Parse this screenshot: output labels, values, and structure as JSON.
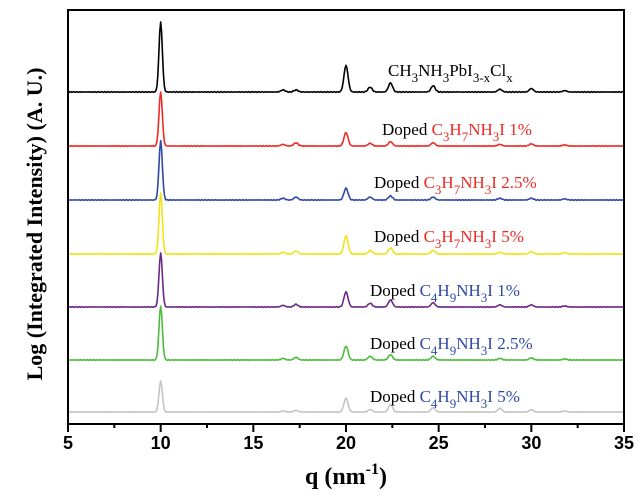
{
  "chart_data": {
    "type": "line",
    "title": "",
    "xlabel": "q (nm",
    "xlabel_sup": "-1",
    "xlabel_close": ")",
    "ylabel": "Log (Integrated Intensity) (A. U.)",
    "xlim": [
      5,
      35
    ],
    "x_ticks": [
      "5",
      "10",
      "15",
      "20",
      "25",
      "30",
      "35"
    ],
    "y_ticks": [],
    "peaks_q": [
      10.0,
      14.2,
      16.6,
      17.3,
      20.0,
      21.3,
      22.4,
      24.7,
      28.3,
      30.0,
      31.8
    ],
    "series": [
      {
        "name": "CH3NH3PbI3-xClx",
        "color": "#000000",
        "peaks": [
          1.0,
          0.0,
          0.03,
          0.03,
          0.38,
          0.07,
          0.13,
          0.09,
          0.04,
          0.05,
          0.02
        ]
      },
      {
        "name": "Doped C3H7NH3I 1%",
        "color": "#ee2a25",
        "peaks": [
          1.0,
          0.0,
          0.03,
          0.06,
          0.25,
          0.05,
          0.08,
          0.06,
          0.03,
          0.04,
          0.02
        ]
      },
      {
        "name": "Doped C3H7NH3I 2.5%",
        "color": "#2e4aa5",
        "peaks": [
          1.0,
          0.0,
          0.03,
          0.05,
          0.2,
          0.05,
          0.07,
          0.05,
          0.03,
          0.03,
          0.02
        ]
      },
      {
        "name": "Doped C3H7NH3I 5%",
        "color": "#f0e31c",
        "peaks": [
          1.0,
          0.0,
          0.03,
          0.05,
          0.3,
          0.06,
          0.1,
          0.06,
          0.03,
          0.04,
          0.02
        ]
      },
      {
        "name": "Doped C4H9NH3I 1%",
        "color": "#6b2a86",
        "peaks": [
          1.0,
          0.0,
          0.03,
          0.05,
          0.28,
          0.07,
          0.13,
          0.08,
          0.04,
          0.04,
          0.02
        ]
      },
      {
        "name": "Doped C4H9NH3I 2.5%",
        "color": "#4bbd3a",
        "peaks": [
          1.0,
          0.0,
          0.03,
          0.05,
          0.26,
          0.07,
          0.1,
          0.07,
          0.03,
          0.04,
          0.02
        ]
      },
      {
        "name": "Doped C4H9NH3I 5%",
        "color": "#c4c4c4",
        "peaks": [
          1.0,
          0.0,
          0.03,
          0.05,
          0.45,
          0.08,
          0.25,
          0.14,
          0.12,
          0.07,
          0.03
        ]
      }
    ],
    "labels": [
      {
        "prefix": "",
        "prefix_color": "#000000",
        "formula": "CH3NH3PbI3-xClx",
        "formula_color": "#000000",
        "formula_parts": [
          [
            "CH",
            ""
          ],
          [
            "3",
            "sub"
          ],
          [
            "NH",
            ""
          ],
          [
            "3",
            "sub"
          ],
          [
            "PbI",
            ""
          ],
          [
            "3-x",
            "sub"
          ],
          [
            "Cl",
            ""
          ],
          [
            "x",
            "sub"
          ]
        ],
        "suffix": ""
      },
      {
        "prefix": "Doped ",
        "prefix_color": "#000000",
        "formula": "C3H7NH3I",
        "formula_color": "#ee2a25",
        "formula_parts": [
          [
            "C",
            ""
          ],
          [
            "3",
            "sub"
          ],
          [
            "H",
            ""
          ],
          [
            "7",
            "sub"
          ],
          [
            "NH",
            ""
          ],
          [
            "3",
            "sub"
          ],
          [
            "I",
            ""
          ]
        ],
        "suffix": "  1%"
      },
      {
        "prefix": "Doped ",
        "prefix_color": "#000000",
        "formula": "C3H7NH3I",
        "formula_color": "#ee2a25",
        "formula_parts": [
          [
            "C",
            ""
          ],
          [
            "3",
            "sub"
          ],
          [
            "H",
            ""
          ],
          [
            "7",
            "sub"
          ],
          [
            "NH",
            ""
          ],
          [
            "3",
            "sub"
          ],
          [
            "I",
            ""
          ]
        ],
        "suffix": "  2.5%"
      },
      {
        "prefix": "Doped ",
        "prefix_color": "#000000",
        "formula": "C3H7NH3I",
        "formula_color": "#ee2a25",
        "formula_parts": [
          [
            "C",
            ""
          ],
          [
            "3",
            "sub"
          ],
          [
            "H",
            ""
          ],
          [
            "7",
            "sub"
          ],
          [
            "NH",
            ""
          ],
          [
            "3",
            "sub"
          ],
          [
            "I",
            ""
          ]
        ],
        "suffix": "  5%"
      },
      {
        "prefix": "Doped ",
        "prefix_color": "#000000",
        "formula": "C4H9NH3I",
        "formula_color": "#2e4aa5",
        "formula_parts": [
          [
            "C",
            ""
          ],
          [
            "4",
            "sub"
          ],
          [
            "H",
            ""
          ],
          [
            "9",
            "sub"
          ],
          [
            "NH",
            ""
          ],
          [
            "3",
            "sub"
          ],
          [
            "I",
            ""
          ]
        ],
        "suffix": "  1%"
      },
      {
        "prefix": "Doped ",
        "prefix_color": "#000000",
        "formula": "C4H9NH3I",
        "formula_color": "#2e4aa5",
        "formula_parts": [
          [
            "C",
            ""
          ],
          [
            "4",
            "sub"
          ],
          [
            "H",
            ""
          ],
          [
            "9",
            "sub"
          ],
          [
            "NH",
            ""
          ],
          [
            "3",
            "sub"
          ],
          [
            "I",
            ""
          ]
        ],
        "suffix": "  2.5%"
      },
      {
        "prefix": "Doped ",
        "prefix_color": "#000000",
        "formula": "C4H9NH3I",
        "formula_color": "#2e4aa5",
        "formula_parts": [
          [
            "C",
            ""
          ],
          [
            "4",
            "sub"
          ],
          [
            "H",
            ""
          ],
          [
            "9",
            "sub"
          ],
          [
            "NH",
            ""
          ],
          [
            "3",
            "sub"
          ],
          [
            "I",
            ""
          ]
        ],
        "suffix": "  5%"
      }
    ]
  }
}
